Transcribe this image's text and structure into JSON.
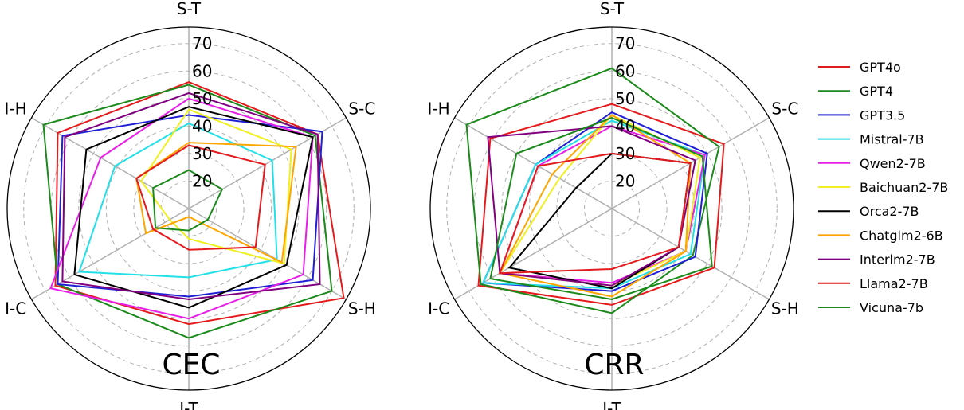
{
  "chart_data": [
    {
      "type": "radar",
      "title": "CEC",
      "axes": [
        "S-T",
        "S-C",
        "S-H",
        "I-T",
        "I-C",
        "I-H"
      ],
      "rlim": [
        10,
        76
      ],
      "ticks": [
        20,
        30,
        40,
        50,
        60,
        70
      ],
      "grid": true,
      "series": [
        {
          "name": "GPT4o",
          "color": "#e41a1c",
          "values": [
            56,
            64,
            75,
            52,
            66,
            65
          ]
        },
        {
          "name": "GPT4",
          "color": "#1b8a1b",
          "values": [
            55,
            63,
            70,
            57,
            65,
            71
          ]
        },
        {
          "name": "GPT3.5",
          "color": "#1f1fd6",
          "values": [
            44,
            66,
            62,
            42,
            65,
            63
          ]
        },
        {
          "name": "Mistral-7B",
          "color": "#22e0e8",
          "values": [
            41,
            45,
            47,
            35,
            56,
            41
          ]
        },
        {
          "name": "Qwen2-7B",
          "color": "#e81ee8",
          "values": [
            50,
            62,
            58,
            50,
            68,
            47
          ]
        },
        {
          "name": "Baichuan2-7B",
          "color": "#f0f020",
          "values": [
            46,
            53,
            50,
            21,
            18,
            30
          ]
        },
        {
          "name": "Orca2-7B",
          "color": "#000000",
          "values": [
            47,
            62,
            51,
            46,
            58,
            53
          ]
        },
        {
          "name": "Chatglm2-6B",
          "color": "#ffa500",
          "values": [
            34,
            55,
            49,
            13,
            28,
            32
          ]
        },
        {
          "name": "Interlm2-7B",
          "color": "#800080",
          "values": [
            52,
            64,
            65,
            43,
            63,
            62
          ]
        },
        {
          "name": "Llama2-7B",
          "color": "#e41a1c",
          "values": [
            33,
            42,
            38,
            25,
            25,
            32
          ]
        },
        {
          "name": "Vicuna-7b",
          "color": "#1b8a1b",
          "values": [
            24,
            24,
            18,
            18,
            24,
            25
          ]
        }
      ]
    },
    {
      "type": "radar",
      "title": "CRR",
      "axes": [
        "S-T",
        "S-C",
        "S-H",
        "I-T",
        "I-C",
        "I-H"
      ],
      "rlim": [
        10,
        76
      ],
      "ticks": [
        20,
        30,
        40,
        50,
        60,
        70
      ],
      "grid": true,
      "series": [
        {
          "name": "GPT4o",
          "color": "#e41a1c",
          "values": [
            48,
            57,
            53,
            45,
            66,
            61
          ]
        },
        {
          "name": "GPT4",
          "color": "#1b8a1b",
          "values": [
            61,
            55,
            44,
            48,
            65,
            71
          ]
        },
        {
          "name": "GPT3.5",
          "color": "#1f1fd6",
          "values": [
            45,
            50,
            45,
            40,
            64,
            42
          ]
        },
        {
          "name": "Mistral-7B",
          "color": "#22e0e8",
          "values": [
            42,
            49,
            43,
            39,
            64,
            42
          ]
        },
        {
          "name": "Qwen2-7B",
          "color": "#e81ee8",
          "values": [
            40,
            49,
            41,
            37,
            57,
            41
          ]
        },
        {
          "name": "Baichuan2-7B",
          "color": "#f0f020",
          "values": [
            44,
            47,
            41,
            38,
            57,
            32
          ]
        },
        {
          "name": "Orca2-7B",
          "color": "#000000",
          "values": [
            30,
            43,
            38,
            39,
            53,
            25
          ]
        },
        {
          "name": "Chatglm2-6B",
          "color": "#ffa500",
          "values": [
            44,
            43,
            41,
            42,
            57,
            35
          ]
        },
        {
          "name": "Interlm2-7B",
          "color": "#800080",
          "values": [
            40,
            45,
            38,
            38,
            57,
            62
          ]
        },
        {
          "name": "Llama2-7B",
          "color": "#e41a1c",
          "values": [
            30,
            43,
            38,
            32,
            57,
            41
          ]
        },
        {
          "name": "Vicuna-7b",
          "color": "#1b8a1b",
          "values": [
            43,
            48,
            52,
            43,
            61,
            50
          ]
        }
      ]
    }
  ]
}
